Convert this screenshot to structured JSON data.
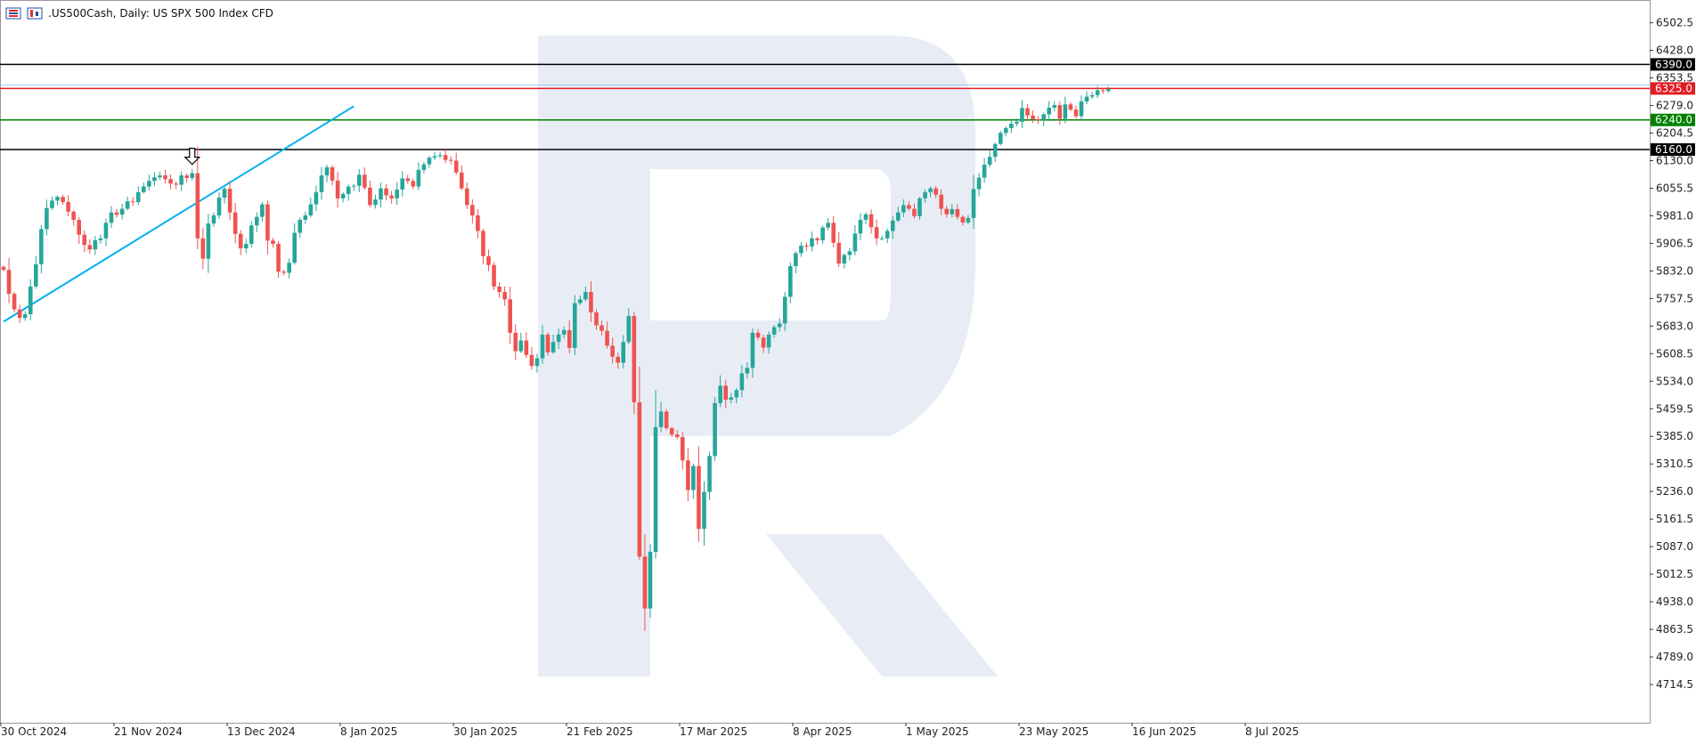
{
  "header": {
    "title": ".US500Cash, Daily:  US SPX 500 Index CFD",
    "icons": [
      "chart-bars-icon",
      "chart-candles-icon"
    ]
  },
  "colors": {
    "bull": "#26a69a",
    "bear": "#ef5350",
    "trendline": "#00b0f0",
    "resistance_top": "#000000",
    "resistance": "#e31b23",
    "support": "#008000",
    "support_bottom": "#000000",
    "watermark": "#e8edf5"
  },
  "chart_data": {
    "type": "candlestick",
    "title": ".US500Cash, Daily:  US SPX 500 Index CFD",
    "ylim": [
      4640,
      6540
    ],
    "y_ticks": [
      "6502.5",
      "6428.0",
      "6353.5",
      "6279.0",
      "6204.5",
      "6130.0",
      "6055.5",
      "5981.0",
      "5906.5",
      "5832.0",
      "5757.5",
      "5683.0",
      "5608.5",
      "5534.0",
      "5459.5",
      "5385.0",
      "5310.5",
      "5236.0",
      "5161.5",
      "5087.0",
      "5012.5",
      "4938.0",
      "4863.5",
      "4789.0",
      "4714.5"
    ],
    "x_labels": [
      "30 Oct 2024",
      "21 Nov 2024",
      "13 Dec 2024",
      "8 Jan 2025",
      "30 Jan 2025",
      "21 Feb 2025",
      "17 Mar 2025",
      "8 Apr 2025",
      "1 May 2025",
      "23 May 2025",
      "16 Jun 2025",
      "8 Jul 2025"
    ],
    "levels": [
      {
        "value": 6390.0,
        "label": "6390.0",
        "color": "#000000"
      },
      {
        "value": 6325.0,
        "label": "6325.0",
        "color": "#e31b23"
      },
      {
        "value": 6240.0,
        "label": "6240.0",
        "color": "#008000"
      },
      {
        "value": 6160.0,
        "label": "6160.0",
        "color": "#000000"
      }
    ],
    "trendline": {
      "start": {
        "bar": 0,
        "value": 5695
      },
      "end": {
        "bar": 65,
        "value": 6277
      }
    },
    "arrow_marker": {
      "bar": 35,
      "value": 6120
    },
    "closes": [
      5835,
      5770,
      5728,
      5705,
      5715,
      5790,
      5850,
      5945,
      6002,
      6022,
      6032,
      6018,
      5992,
      5970,
      5930,
      5902,
      5890,
      5915,
      5920,
      5962,
      5990,
      5984,
      6000,
      6020,
      6018,
      6045,
      6060,
      6075,
      6085,
      6090,
      6080,
      6068,
      6065,
      6090,
      6083,
      6096,
      5920,
      5865,
      5960,
      5982,
      6030,
      6054,
      5990,
      5932,
      5893,
      5905,
      5955,
      5978,
      6012,
      5914,
      5905,
      5830,
      5827,
      5854,
      5935,
      5970,
      5982,
      6012,
      6045,
      6090,
      6112,
      6076,
      6028,
      6040,
      6060,
      6062,
      6092,
      6057,
      6010,
      6025,
      6055,
      6036,
      6028,
      6052,
      6082,
      6075,
      6060,
      6105,
      6120,
      6138,
      6142,
      6145,
      6132,
      6130,
      6098,
      6055,
      6010,
      5982,
      5940,
      5872,
      5848,
      5790,
      5775,
      5755,
      5665,
      5615,
      5644,
      5605,
      5575,
      5596,
      5660,
      5612,
      5640,
      5660,
      5672,
      5624,
      5745,
      5755,
      5775,
      5720,
      5685,
      5670,
      5630,
      5600,
      5584,
      5640,
      5710,
      5477,
      5060,
      4920,
      5073,
      5410,
      5452,
      5407,
      5390,
      5383,
      5320,
      5240,
      5305,
      5135,
      5235,
      5332,
      5475,
      5522,
      5484,
      5490,
      5510,
      5555,
      5570,
      5665,
      5652,
      5625,
      5660,
      5680,
      5690,
      5762,
      5845,
      5880,
      5900,
      5898,
      5920,
      5915,
      5949,
      5962,
      5908,
      5852,
      5875,
      5885,
      5933,
      5970,
      5985,
      5950,
      5920,
      5920,
      5940,
      5968,
      5990,
      6010,
      6000,
      5980,
      6028,
      6045,
      6055,
      6038,
      6000,
      5985,
      5999,
      5978,
      5963,
      5975,
      6053,
      6084,
      6119,
      6140,
      6175,
      6205,
      6218,
      6230,
      6235,
      6272,
      6252,
      6242,
      6240,
      6255,
      6273,
      6280,
      6243,
      6282,
      6268,
      6250,
      6290,
      6303,
      6307,
      6320,
      6318,
      6323
    ]
  }
}
